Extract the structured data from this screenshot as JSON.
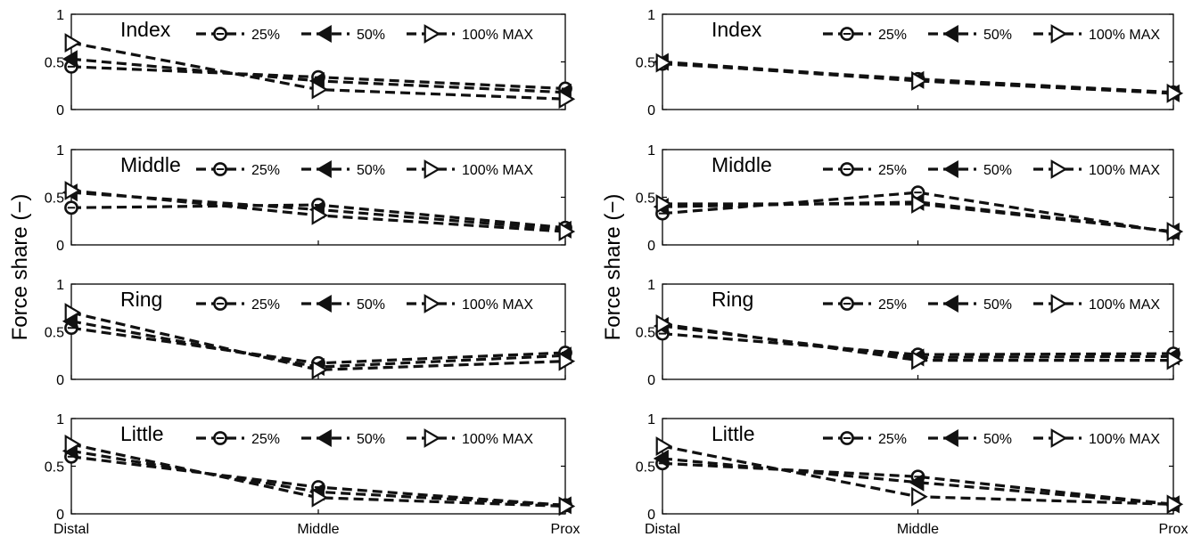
{
  "figure": {
    "ylabel": "Force share (−)",
    "marker_style": {
      "25%": "circle",
      "50%": "left-triangle",
      "100% MAX": "right-triangle"
    },
    "line_color": "#111111"
  },
  "chart_data": [
    {
      "type": "line",
      "panel": "left",
      "row": 1,
      "title": "Index",
      "categories": [
        "Distal",
        "Middle",
        "Prox"
      ],
      "show_xticks": false,
      "ylim": [
        0,
        1
      ],
      "yticks": [
        "0",
        "0.5",
        "1"
      ],
      "legend": "top-right",
      "grid": false,
      "series": [
        {
          "name": "25%",
          "values": [
            0.45,
            0.34,
            0.22
          ]
        },
        {
          "name": "50%",
          "values": [
            0.53,
            0.3,
            0.18
          ]
        },
        {
          "name": "100% MAX",
          "values": [
            0.7,
            0.21,
            0.11
          ]
        }
      ]
    },
    {
      "type": "line",
      "panel": "left",
      "row": 2,
      "title": "Middle",
      "categories": [
        "Distal",
        "Middle",
        "Prox"
      ],
      "show_xticks": false,
      "ylim": [
        0,
        1
      ],
      "yticks": [
        "0",
        "0.5",
        "1"
      ],
      "legend": "top-right",
      "grid": false,
      "series": [
        {
          "name": "25%",
          "values": [
            0.39,
            0.42,
            0.18
          ]
        },
        {
          "name": "50%",
          "values": [
            0.55,
            0.37,
            0.16
          ]
        },
        {
          "name": "100% MAX",
          "values": [
            0.57,
            0.31,
            0.14
          ]
        }
      ]
    },
    {
      "type": "line",
      "panel": "left",
      "row": 3,
      "title": "Ring",
      "categories": [
        "Distal",
        "Middle",
        "Prox"
      ],
      "show_xticks": false,
      "ylim": [
        0,
        1
      ],
      "yticks": [
        "0",
        "0.5",
        "1"
      ],
      "legend": "top-right",
      "grid": false,
      "series": [
        {
          "name": "25%",
          "values": [
            0.54,
            0.17,
            0.28
          ]
        },
        {
          "name": "50%",
          "values": [
            0.61,
            0.13,
            0.25
          ]
        },
        {
          "name": "100% MAX",
          "values": [
            0.7,
            0.1,
            0.19
          ]
        }
      ]
    },
    {
      "type": "line",
      "panel": "left",
      "row": 4,
      "title": "Little",
      "categories": [
        "Distal",
        "Middle",
        "Prox"
      ],
      "show_xticks": true,
      "ylim": [
        0,
        1
      ],
      "yticks": [
        "0",
        "0.5",
        "1"
      ],
      "legend": "top-right",
      "grid": false,
      "series": [
        {
          "name": "25%",
          "values": [
            0.6,
            0.28,
            0.09
          ]
        },
        {
          "name": "50%",
          "values": [
            0.66,
            0.23,
            0.09
          ]
        },
        {
          "name": "100% MAX",
          "values": [
            0.73,
            0.17,
            0.08
          ]
        }
      ]
    },
    {
      "type": "line",
      "panel": "right",
      "row": 1,
      "title": "Index",
      "categories": [
        "Distal",
        "Middle",
        "Prox"
      ],
      "show_xticks": false,
      "ylim": [
        0,
        1
      ],
      "yticks": [
        "0",
        "0.5",
        "1"
      ],
      "legend": "top-right",
      "grid": false,
      "series": [
        {
          "name": "25%",
          "values": [
            0.48,
            0.32,
            0.18
          ]
        },
        {
          "name": "50%",
          "values": [
            0.5,
            0.31,
            0.17
          ]
        },
        {
          "name": "100% MAX",
          "values": [
            0.49,
            0.3,
            0.17
          ]
        }
      ]
    },
    {
      "type": "line",
      "panel": "right",
      "row": 2,
      "title": "Middle",
      "categories": [
        "Distal",
        "Middle",
        "Prox"
      ],
      "show_xticks": false,
      "ylim": [
        0,
        1
      ],
      "yticks": [
        "0",
        "0.5",
        "1"
      ],
      "legend": "top-right",
      "grid": false,
      "series": [
        {
          "name": "25%",
          "values": [
            0.33,
            0.55,
            0.13
          ]
        },
        {
          "name": "50%",
          "values": [
            0.4,
            0.45,
            0.14
          ]
        },
        {
          "name": "100% MAX",
          "values": [
            0.43,
            0.43,
            0.14
          ]
        }
      ]
    },
    {
      "type": "line",
      "panel": "right",
      "row": 3,
      "title": "Ring",
      "categories": [
        "Distal",
        "Middle",
        "Prox"
      ],
      "show_xticks": false,
      "ylim": [
        0,
        1
      ],
      "yticks": [
        "0",
        "0.5",
        "1"
      ],
      "legend": "top-right",
      "grid": false,
      "series": [
        {
          "name": "25%",
          "values": [
            0.48,
            0.26,
            0.27
          ]
        },
        {
          "name": "50%",
          "values": [
            0.56,
            0.23,
            0.24
          ]
        },
        {
          "name": "100% MAX",
          "values": [
            0.58,
            0.2,
            0.2
          ]
        }
      ]
    },
    {
      "type": "line",
      "panel": "right",
      "row": 4,
      "title": "Little",
      "categories": [
        "Distal",
        "Middle",
        "Prox"
      ],
      "show_xticks": true,
      "ylim": [
        0,
        1
      ],
      "yticks": [
        "0",
        "0.5",
        "1"
      ],
      "legend": "top-right",
      "grid": false,
      "series": [
        {
          "name": "25%",
          "values": [
            0.53,
            0.39,
            0.1
          ]
        },
        {
          "name": "50%",
          "values": [
            0.58,
            0.33,
            0.1
          ]
        },
        {
          "name": "100% MAX",
          "values": [
            0.71,
            0.18,
            0.1
          ]
        }
      ]
    }
  ]
}
